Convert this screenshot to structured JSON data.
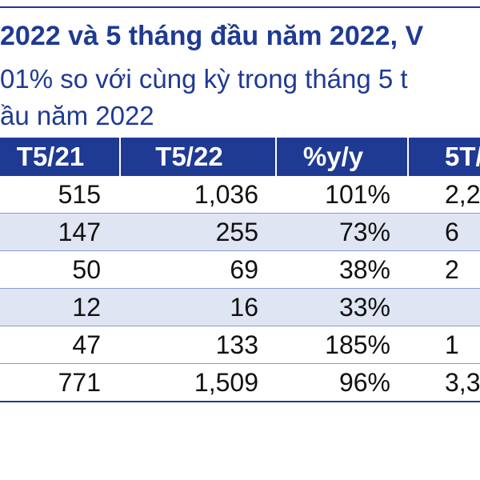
{
  "title": "2022 và 5 tháng đầu năm 2022, V",
  "subtitle": {
    "line1": "01% so với cùng kỳ trong tháng 5 t",
    "line2": "ầu năm 2022"
  },
  "table": {
    "headers": [
      "T5/21",
      "T5/22",
      "%y/y",
      "5T/"
    ],
    "rows": [
      [
        "515",
        "1,036",
        "101%",
        "2,2"
      ],
      [
        "147",
        "255",
        "73%",
        "6"
      ],
      [
        "50",
        "69",
        "38%",
        "2"
      ],
      [
        "12",
        "16",
        "33%",
        ""
      ],
      [
        "47",
        "133",
        "185%",
        "1"
      ],
      [
        "771",
        "1,509",
        "96%",
        "3,3"
      ]
    ]
  },
  "colors": {
    "header_bg": "#1f3a93",
    "title_text": "#1f3a93",
    "alt_row_bg": "#dfe5f2"
  }
}
